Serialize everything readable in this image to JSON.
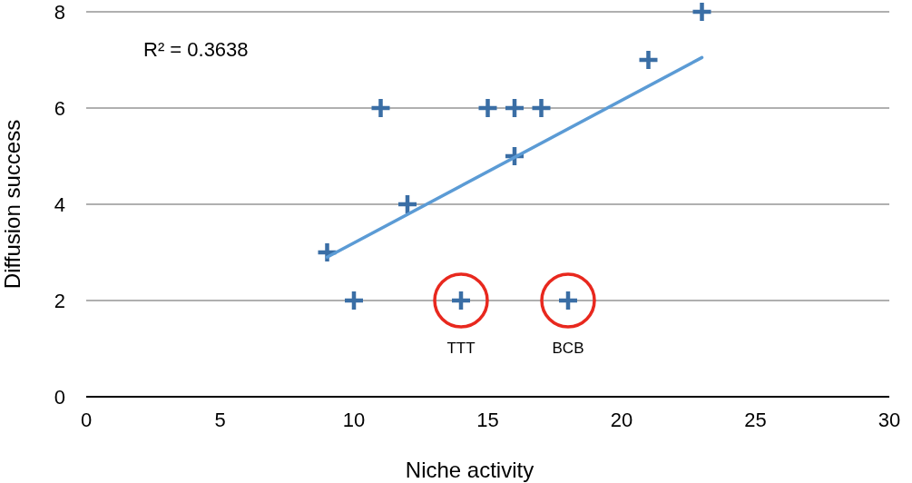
{
  "chart_data": {
    "type": "scatter",
    "xlabel": "Niche activity",
    "ylabel": "Diffusion success",
    "xlim": [
      0,
      30
    ],
    "xticks": [
      0,
      5,
      10,
      15,
      20,
      25,
      30
    ],
    "ylim": [
      0,
      8
    ],
    "yticks": [
      0,
      2,
      4,
      6,
      8
    ],
    "grid": "y",
    "series": [
      {
        "color": "#3a6ea5",
        "marker": "cross",
        "x": [
          9,
          10,
          11,
          12,
          14,
          15,
          16,
          17,
          16,
          18,
          21,
          23
        ],
        "values": [
          3,
          2,
          6,
          4,
          2,
          6,
          6,
          6,
          5,
          2,
          7,
          8
        ]
      },
      {
        "type": "line",
        "color": "#5b9bd5",
        "x": [
          9,
          23
        ],
        "values": [
          2.9,
          7.05
        ]
      }
    ],
    "annotations": [
      "R² = 0.3638",
      {
        "text": "TTT",
        "x": 14,
        "y": 2
      },
      {
        "text": "BCB",
        "x": 18,
        "y": 2
      }
    ]
  }
}
